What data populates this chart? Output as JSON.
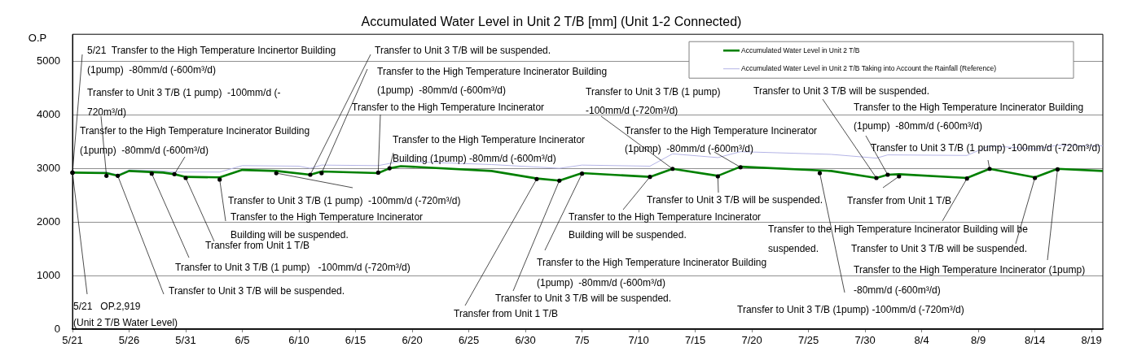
{
  "chart_data": {
    "type": "line",
    "title": "Accumulated Water Level in Unit 2 T/B [mm] (Unit 1-2 Connected)",
    "ylabel": "O.P",
    "xlim": [
      "--05-21",
      "--08-20"
    ],
    "xticks": [
      {
        "value": "--05-21",
        "label": "5/21"
      },
      {
        "value": "--05-26",
        "label": "5/26"
      },
      {
        "value": "--05-31",
        "label": "5/31"
      },
      {
        "value": "--06-05",
        "label": "6/5"
      },
      {
        "value": "--06-10",
        "label": "6/10"
      },
      {
        "value": "--06-15",
        "label": "6/15"
      },
      {
        "value": "--06-20",
        "label": "6/20"
      },
      {
        "value": "--06-25",
        "label": "6/25"
      },
      {
        "value": "--06-30",
        "label": "6/30"
      },
      {
        "value": "--07-05",
        "label": "7/5"
      },
      {
        "value": "--07-10",
        "label": "7/10"
      },
      {
        "value": "--07-15",
        "label": "7/15"
      },
      {
        "value": "--07-20",
        "label": "7/20"
      },
      {
        "value": "--07-25",
        "label": "7/25"
      },
      {
        "value": "--07-30",
        "label": "7/30"
      },
      {
        "value": "--08-04",
        "label": "8/4"
      },
      {
        "value": "--08-09",
        "label": "8/9"
      },
      {
        "value": "--08-14",
        "label": "8/14"
      },
      {
        "value": "--08-19",
        "label": "8/19"
      }
    ],
    "ylim": [
      0,
      5500
    ],
    "yticks": [
      0,
      1000,
      2000,
      3000,
      4000,
      5000
    ],
    "grid": "y",
    "legend": "top right",
    "series": [
      {
        "name": "Accumulated Water Level in Unit 2 T/B",
        "color": "#008000",
        "x": [
          "--05-21",
          "--05-24",
          "--05-25",
          "--05-26",
          "--05-29",
          "--05-30",
          "--05-31",
          "--06-03",
          "--06-05",
          "--06-08",
          "--06-11",
          "--06-12",
          "--06-17",
          "--06-18",
          "--06-19",
          "--06-27",
          "--07-01",
          "--07-03",
          "--07-05",
          "--07-11",
          "--07-13",
          "--07-17",
          "--07-19",
          "--07-27",
          "--07-31",
          "--08-01",
          "--08-02",
          "--08-08",
          "--08-10",
          "--08-14",
          "--08-16",
          "--08-20"
        ],
        "values": [
          2920,
          2910,
          2860,
          2950,
          2920,
          2890,
          2840,
          2830,
          2970,
          2950,
          2880,
          2940,
          2910,
          3000,
          3040,
          2950,
          2810,
          2770,
          2910,
          2840,
          2990,
          2860,
          3030,
          2950,
          2820,
          2880,
          2890,
          2820,
          2990,
          2830,
          2990,
          2950
        ]
      },
      {
        "name": "Accumulated Water Level in Unit 2 T/B Taking into Account the Rainfall (Reference)",
        "color": "#b4b4e6",
        "x": [
          "--05-21",
          "--05-24",
          "--05-25",
          "--05-26",
          "--05-29",
          "--05-30",
          "--06-03",
          "--06-05",
          "--06-10",
          "--06-11",
          "--06-12",
          "--06-17",
          "--06-19",
          "--06-27",
          "--07-03",
          "--07-05",
          "--07-11",
          "--07-13",
          "--07-17",
          "--07-19",
          "--07-27",
          "--07-31",
          "--08-01",
          "--08-08",
          "--08-10",
          "--08-14",
          "--08-16",
          "--08-20"
        ],
        "values": [
          2920,
          2930,
          2880,
          2970,
          2950,
          2930,
          2930,
          3050,
          3040,
          3000,
          3060,
          3050,
          3130,
          3070,
          3000,
          3060,
          3040,
          3270,
          3200,
          3310,
          3260,
          3190,
          3250,
          3240,
          3420,
          3360,
          3430,
          3420
        ]
      }
    ],
    "annotations": [
      {
        "text": "5/21  Transfer to the High Temperature Incinertor Building\n(1pump)  -80mm/d (-600m³/d)",
        "x": "--05-21",
        "y": 2919
      },
      {
        "text": "Transfer to Unit 3 T/B (1 pump)  -100mm/d (-\n720m³/d)",
        "x": "--05-24",
        "y": 2860
      },
      {
        "text": "Transfer to the High Temperature Incinerator Building\n(1pump)  -80mm/d (-600m³/d)",
        "x": "--05-30",
        "y": 2890
      },
      {
        "text": "5/21   OP.2,919\n(Unit 2 T/B Water Level)",
        "x": "--05-21",
        "y": 2919
      },
      {
        "text": "Transfer to Unit 3 T/B will be suspended.",
        "x": "--05-25",
        "y": 2860
      },
      {
        "text": "Transfer to Unit 3 T/B (1 pump)   -100mm/d (-720m³/d)",
        "x": "--05-28",
        "y": 2900
      },
      {
        "text": "Transfer from Unit 1 T/B",
        "x": "--05-31",
        "y": 2820
      },
      {
        "text": "Transfer to the High Temperature Incinerator\nBuilding will be suspended.",
        "x": "--06-03",
        "y": 2790
      },
      {
        "text": "Transfer to Unit 3 T/B (1 pump)  -100mm/d (-720m³/d)",
        "x": "--06-08",
        "y": 2910
      },
      {
        "text": "Transfer to Unit 3 T/B will be suspended.",
        "x": "--06-11",
        "y": 2880
      },
      {
        "text": "Transfer to the High Temperature Incinerator Building\n(1pump)  -80mm/d (-600m³/d)",
        "x": "--06-12",
        "y": 2910
      },
      {
        "text": "Transfer to the High Temperature Incinerator",
        "x": "--06-17",
        "y": 2920
      },
      {
        "text": "Transfer to the High Temperature Incinerator\nBuilding (1pump) -80mm/d (-600m³/d)",
        "x": "--06-18",
        "y": 3000
      },
      {
        "text": "Transfer from Unit 1 T/B",
        "x": "--07-01",
        "y": 2800
      },
      {
        "text": "Transfer to Unit 3 T/B will be suspended.",
        "x": "--07-03",
        "y": 2770
      },
      {
        "text": "Transfer to the High Temperature Incinerator Building\n(1pump)  -80mm/d (-600m³/d)",
        "x": "--07-05",
        "y": 2900
      },
      {
        "text": "Transfer to the High Temperature Incinerator\nBuilding will be suspended.",
        "x": "--07-11",
        "y": 2840
      },
      {
        "text": "Transfer to Unit 3 T/B (1 pump)\n-100mm/d (-720m³/d)",
        "x": "--07-13",
        "y": 2990
      },
      {
        "text": "Transfer to the High Temperature Incinerator\n(1pump)  -80mm/d (-600m³/d)",
        "x": "--07-19",
        "y": 3020
      },
      {
        "text": "Transfer to Unit 3 T/B will be suspended.",
        "x": "--07-17",
        "y": 2850
      },
      {
        "text": "Transfer to Unit 3 T/B will be suspended.",
        "x": "--07-31",
        "y": 2820
      },
      {
        "text": "Transfer to the High Temperature Incinerator Building\n(1pump)  -80mm/d (-600m³/d)",
        "x": "--08-01",
        "y": 2880
      },
      {
        "text": "Transfer from Unit 1 T/B",
        "x": "--08-02",
        "y": 2850
      },
      {
        "text": "Transfer to Unit 3 T/B (1 pump) -100mm/d (-720m³/d)",
        "x": "--08-10",
        "y": 2990
      },
      {
        "text": "Transfer to the High Temperature Incinerator Building will be\nsuspended.",
        "x": "--08-08",
        "y": 2810
      },
      {
        "text": "Transfer to Unit 3 T/B will be suspended.",
        "x": "--08-14",
        "y": 2820
      },
      {
        "text": "Transfer to the High Temperature Incinerator (1pump)\n-80mm/d (-600m³/d)",
        "x": "--08-16",
        "y": 2980
      },
      {
        "text": "Transfer to Unit 3 T/B (1pump) -100mm/d (-720m³/d)",
        "x": "--07-26",
        "y": 2910
      }
    ]
  }
}
